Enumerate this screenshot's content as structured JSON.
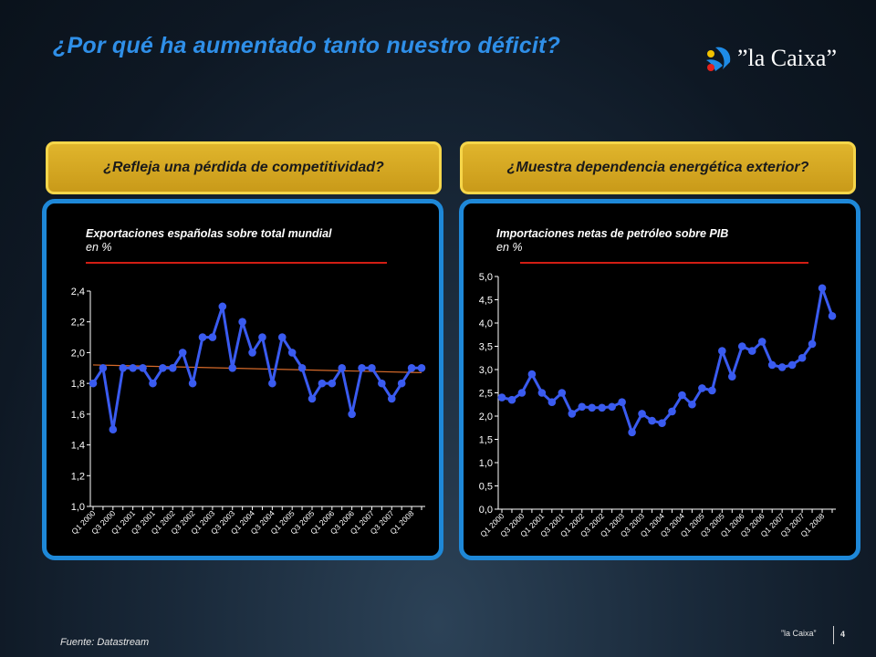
{
  "slide": {
    "title": "¿Por qué ha aumentado tanto nuestro déficit?",
    "logo_text": "”la Caixa”",
    "source": "Fuente: Datastream",
    "footer_brand": "”la Caixa”",
    "page_number": "4"
  },
  "left": {
    "banner": "¿Refleja una pérdida de competitividad?",
    "chart_title": "Exportaciones españolas sobre total mundial",
    "chart_unit": "en %"
  },
  "right": {
    "banner": "¿Muestra dependencia energética exterior?",
    "chart_title": "Importaciones netas de petróleo sobre PIB",
    "chart_unit": "en %"
  },
  "colors": {
    "title": "#2f8fe8",
    "banner": "#d4a820",
    "panel_border": "#1e88d8",
    "series": "#3a5bf0",
    "trend": "#d66a2a",
    "underline": "#d21d14"
  },
  "chart_data": [
    {
      "type": "line",
      "title": "Exportaciones españolas sobre total mundial",
      "ylabel": "en %",
      "ylim": [
        1.0,
        2.4
      ],
      "yticks": [
        "1,0",
        "1,2",
        "1,4",
        "1,6",
        "1,8",
        "2,0",
        "2,2",
        "2,4"
      ],
      "xtick_labels": [
        "Q1 2000",
        "Q3 2000",
        "Q1 2001",
        "Q3 2001",
        "Q1 2002",
        "Q3 2002",
        "Q1 2003",
        "Q3 2003",
        "Q1 2004",
        "Q3 2004",
        "Q1 2005",
        "Q3 2005",
        "Q1 2006",
        "Q3 2006",
        "Q1 2007",
        "Q3 2007",
        "Q1 2008"
      ],
      "trendline": [
        1.92,
        1.87
      ],
      "series": [
        {
          "values": [
            1.8,
            1.9,
            1.5,
            1.9,
            1.9,
            1.9,
            1.8,
            1.9,
            1.9,
            2.0,
            1.8,
            2.1,
            2.1,
            2.3,
            1.9,
            2.2,
            2.0,
            2.1,
            1.8,
            2.1,
            2.0,
            1.9,
            1.7,
            1.8,
            1.8,
            1.9,
            1.6,
            1.9,
            1.9,
            1.8,
            1.7,
            1.8,
            1.9,
            1.9
          ]
        }
      ]
    },
    {
      "type": "line",
      "title": "Importaciones netas de petróleo sobre PIB",
      "ylabel": "en %",
      "ylim": [
        0.0,
        5.0
      ],
      "yticks": [
        "0,0",
        "0,5",
        "1,0",
        "1,5",
        "2,0",
        "2,5",
        "3,0",
        "3,5",
        "4,0",
        "4,5",
        "5,0"
      ],
      "xtick_labels": [
        "Q1 2000",
        "Q3 2000",
        "Q1 2001",
        "Q3 2001",
        "Q1 2002",
        "Q3 2002",
        "Q1 2003",
        "Q3 2003",
        "Q1 2004",
        "Q3 2004",
        "Q1 2005",
        "Q3 2005",
        "Q1 2006",
        "Q3 2006",
        "Q1 2007",
        "Q3 2007",
        "Q1 2008"
      ],
      "series": [
        {
          "values": [
            2.4,
            2.35,
            2.5,
            2.9,
            2.5,
            2.3,
            2.5,
            2.05,
            2.2,
            2.18,
            2.18,
            2.2,
            2.3,
            1.65,
            2.05,
            1.9,
            1.85,
            2.1,
            2.45,
            2.25,
            2.6,
            2.55,
            3.4,
            2.85,
            3.5,
            3.4,
            3.6,
            3.1,
            3.05,
            3.1,
            3.25,
            3.55,
            4.75,
            4.15
          ]
        }
      ]
    }
  ]
}
